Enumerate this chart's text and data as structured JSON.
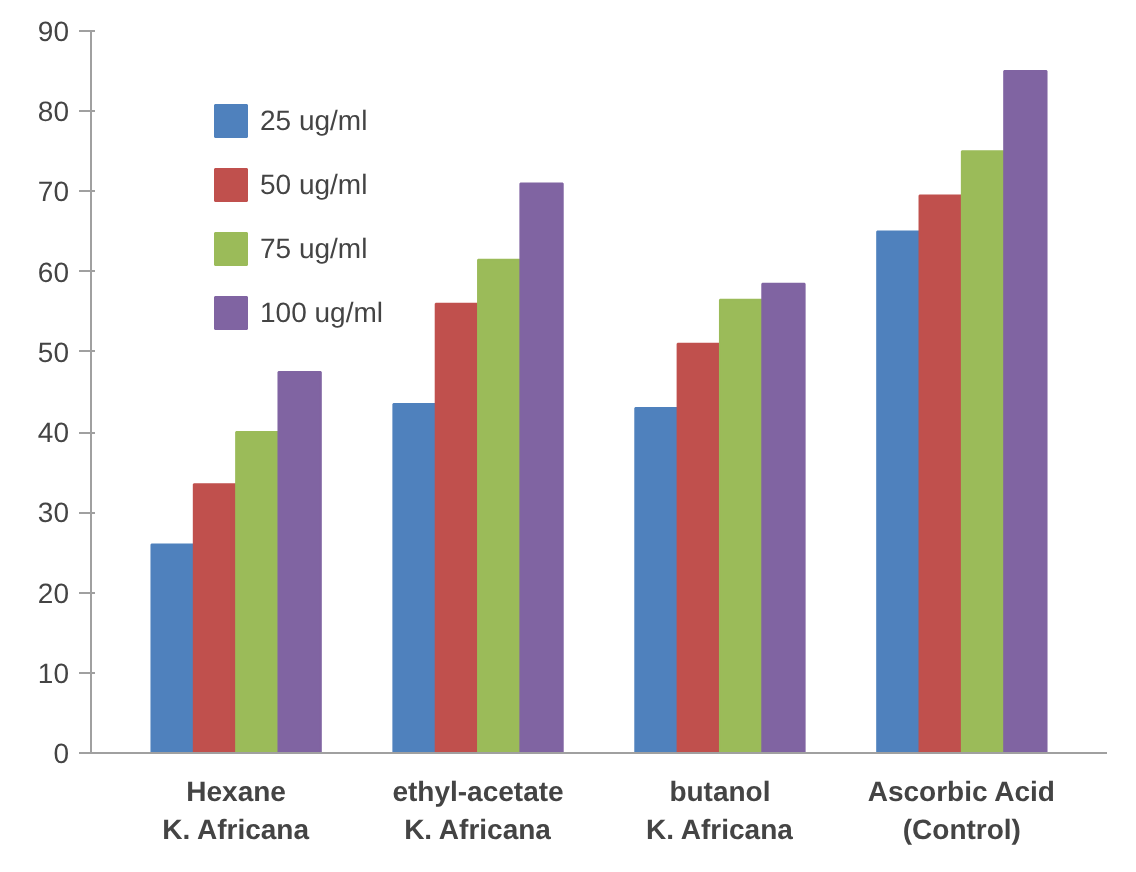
{
  "chart_data": {
    "type": "bar",
    "categories": [
      "Hexane\nK. Africana",
      "ethyl-acetate\nK. Africana",
      "butanol\nK. Africana",
      "Ascorbic Acid\n(Control)"
    ],
    "series": [
      {
        "name": "25 ug/ml",
        "color": "#4f81bd",
        "values": [
          26,
          43.5,
          43,
          65
        ]
      },
      {
        "name": "50 ug/ml",
        "color": "#c0504d",
        "values": [
          33.5,
          56,
          51,
          69.5
        ]
      },
      {
        "name": "75 ug/ml",
        "color": "#9bbb59",
        "values": [
          40,
          61.5,
          56.5,
          75
        ]
      },
      {
        "name": "100 ug/ml",
        "color": "#8064a2",
        "values": [
          47.5,
          71,
          58.5,
          85
        ]
      }
    ],
    "ylim": [
      0,
      90
    ],
    "yticks": [
      0,
      10,
      20,
      30,
      40,
      50,
      60,
      70,
      80,
      90
    ],
    "grid": false,
    "legend": "top left"
  }
}
